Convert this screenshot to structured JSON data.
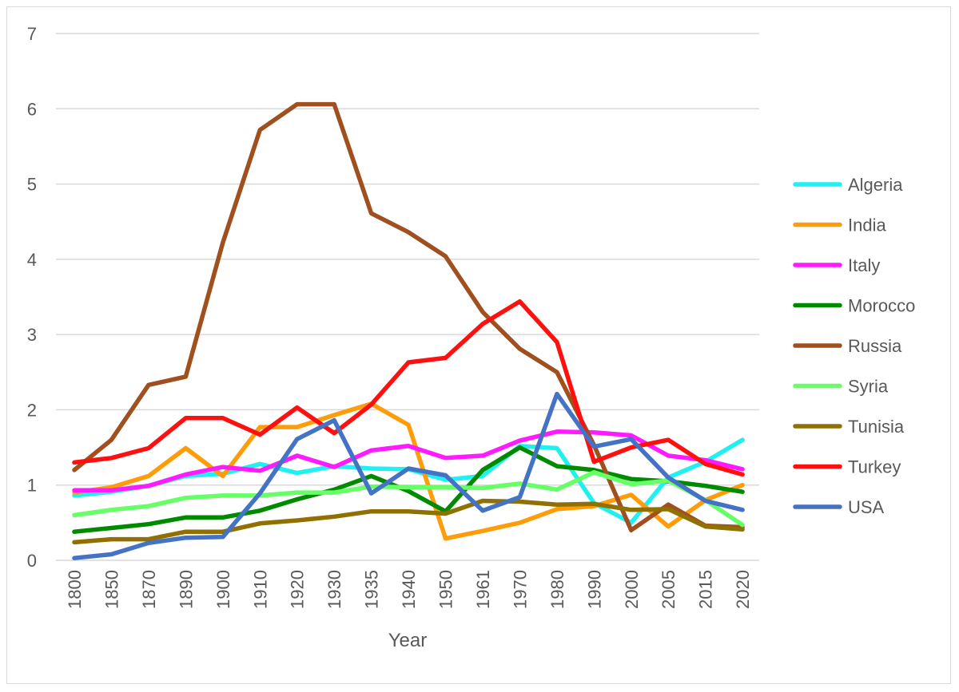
{
  "chart_data": {
    "type": "line",
    "title": "",
    "xlabel": "Year",
    "ylabel": "",
    "ylim": [
      0,
      7
    ],
    "yticks": [
      "0",
      "1",
      "2",
      "3",
      "4",
      "5",
      "6",
      "7"
    ],
    "grid": "horizontal",
    "legend_position": "right",
    "categories": [
      "1800",
      "1850",
      "1870",
      "1890",
      "1900",
      "1910",
      "1920",
      "1930",
      "1935",
      "1940",
      "1950",
      "1961",
      "1970",
      "1980",
      "1990",
      "2000",
      "2005",
      "2015",
      "2020"
    ],
    "series": [
      {
        "name": "Algeria",
        "color": "#21f0f0",
        "values": [
          0.86,
          0.91,
          0.99,
          1.12,
          1.15,
          1.28,
          1.16,
          1.25,
          1.22,
          1.21,
          1.07,
          1.12,
          1.52,
          1.49,
          0.76,
          0.5,
          1.1,
          1.31,
          1.6
        ]
      },
      {
        "name": "India",
        "color": "#ff9c0a",
        "values": [
          0.9,
          0.97,
          1.12,
          1.49,
          1.12,
          1.77,
          1.77,
          1.93,
          2.08,
          1.8,
          0.29,
          0.39,
          0.5,
          0.68,
          0.72,
          0.87,
          0.45,
          0.8,
          1.0
        ]
      },
      {
        "name": "Italy",
        "color": "#ff1aff",
        "values": [
          0.93,
          0.93,
          0.99,
          1.14,
          1.24,
          1.19,
          1.39,
          1.24,
          1.46,
          1.52,
          1.36,
          1.39,
          1.59,
          1.71,
          1.7,
          1.66,
          1.39,
          1.33,
          1.21
        ]
      },
      {
        "name": "Morocco",
        "color": "#008a00",
        "values": [
          0.38,
          0.43,
          0.48,
          0.57,
          0.57,
          0.66,
          0.81,
          0.94,
          1.12,
          0.92,
          0.65,
          1.2,
          1.5,
          1.25,
          1.2,
          1.08,
          1.05,
          0.99,
          0.91
        ]
      },
      {
        "name": "Russia",
        "color": "#a0501e",
        "values": [
          1.2,
          1.6,
          2.33,
          2.44,
          4.22,
          5.72,
          6.06,
          6.06,
          4.61,
          4.36,
          4.04,
          3.3,
          2.81,
          2.5,
          1.53,
          0.4,
          0.74,
          0.46,
          0.44
        ]
      },
      {
        "name": "Syria",
        "color": "#66ff66",
        "values": [
          0.6,
          0.67,
          0.72,
          0.83,
          0.86,
          0.86,
          0.9,
          0.9,
          0.98,
          0.97,
          0.97,
          0.96,
          1.02,
          0.94,
          1.17,
          1.01,
          1.06,
          0.8,
          0.47
        ]
      },
      {
        "name": "Tunisia",
        "color": "#907000",
        "values": [
          0.24,
          0.28,
          0.28,
          0.38,
          0.38,
          0.49,
          0.53,
          0.58,
          0.65,
          0.65,
          0.62,
          0.79,
          0.78,
          0.74,
          0.75,
          0.67,
          0.68,
          0.45,
          0.41
        ]
      },
      {
        "name": "Turkey",
        "color": "#ff1010",
        "values": [
          1.3,
          1.36,
          1.49,
          1.89,
          1.89,
          1.67,
          2.03,
          1.69,
          2.07,
          2.63,
          2.69,
          3.14,
          3.44,
          2.9,
          1.31,
          1.5,
          1.6,
          1.28,
          1.14
        ]
      },
      {
        "name": "USA",
        "color": "#4472c4",
        "values": [
          0.03,
          0.08,
          0.23,
          0.3,
          0.31,
          0.89,
          1.61,
          1.86,
          0.89,
          1.22,
          1.13,
          0.66,
          0.84,
          2.21,
          1.51,
          1.61,
          1.1,
          0.79,
          0.67
        ]
      }
    ]
  }
}
